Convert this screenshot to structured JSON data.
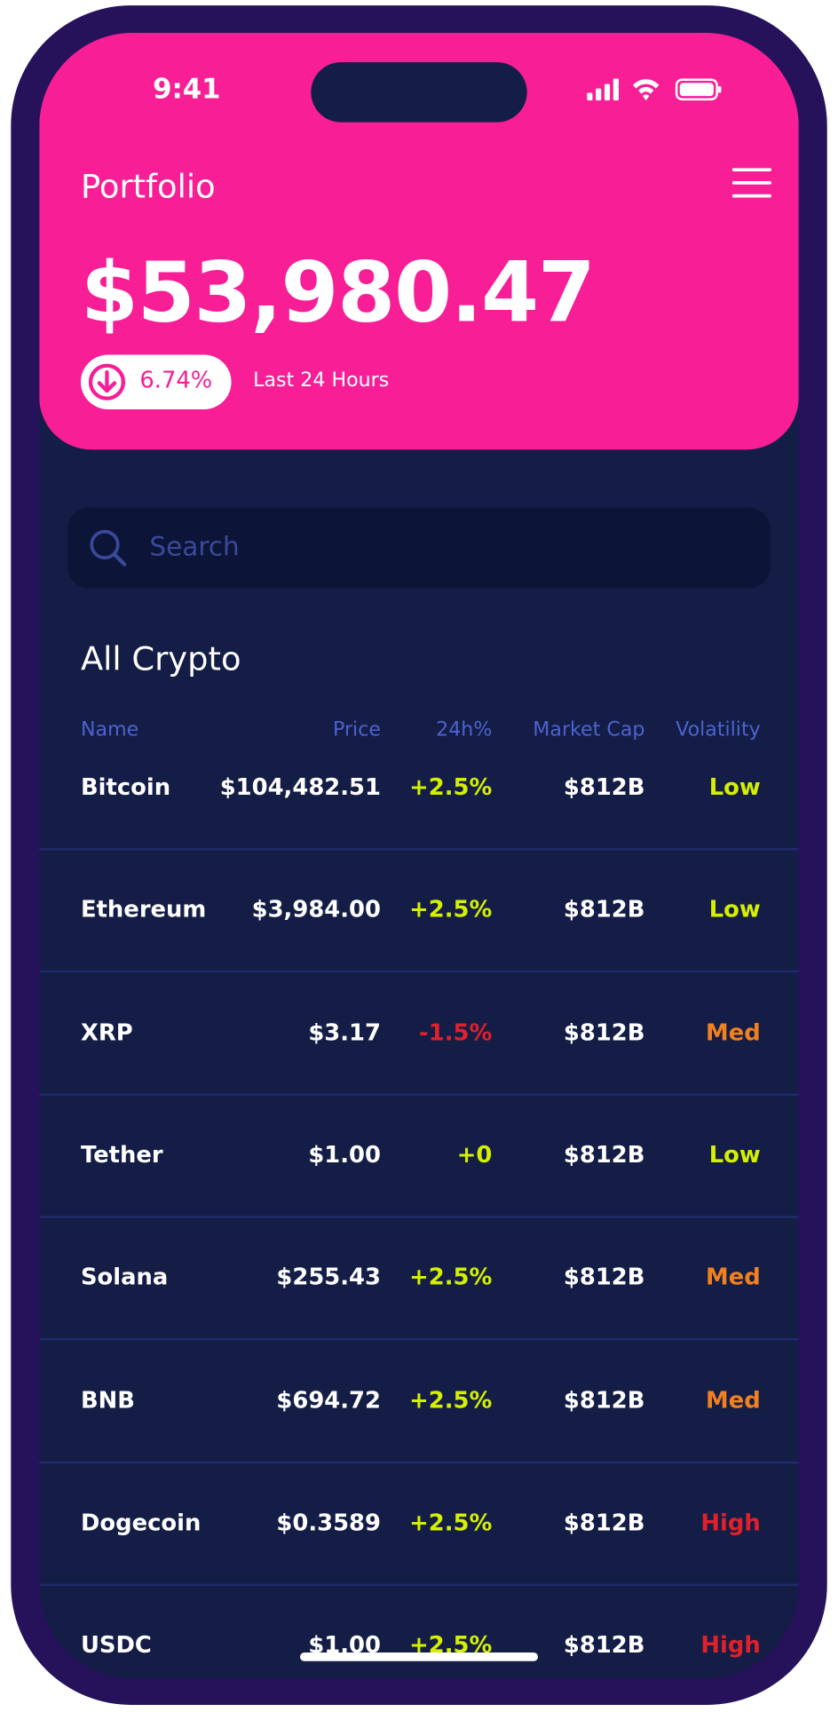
{
  "status": {
    "time": "9:41"
  },
  "header": {
    "title": "Portfolio",
    "balance": "$53,980.47",
    "change": "6.74%",
    "period": "Last 24 Hours"
  },
  "search": {
    "placeholder": "Search"
  },
  "table": {
    "title": "All Crypto",
    "columns": [
      "Name",
      "Price",
      "24h%",
      "Market Cap",
      "Volatility"
    ],
    "rows": [
      [
        "Bitcoin",
        "$104,482.51",
        "+2.5%",
        "$812B",
        "Low"
      ],
      [
        "Ethereum",
        "$3,984.00",
        "+2.5%",
        "$812B",
        "Low"
      ],
      [
        "XRP",
        "$3.17",
        "-1.5%",
        "$812B",
        "Med"
      ],
      [
        "Tether",
        "$1.00",
        "+0",
        "$812B",
        "Low"
      ],
      [
        "Solana",
        "$255.43",
        "+2.5%",
        "$812B",
        "Med"
      ],
      [
        "BNB",
        "$694.72",
        "+2.5%",
        "$812B",
        "Med"
      ],
      [
        "Dogecoin",
        "$0.3589",
        "+2.5%",
        "$812B",
        "High"
      ],
      [
        "USDC",
        "$1.00",
        "+2.5%",
        "$812B",
        "High"
      ]
    ]
  }
}
